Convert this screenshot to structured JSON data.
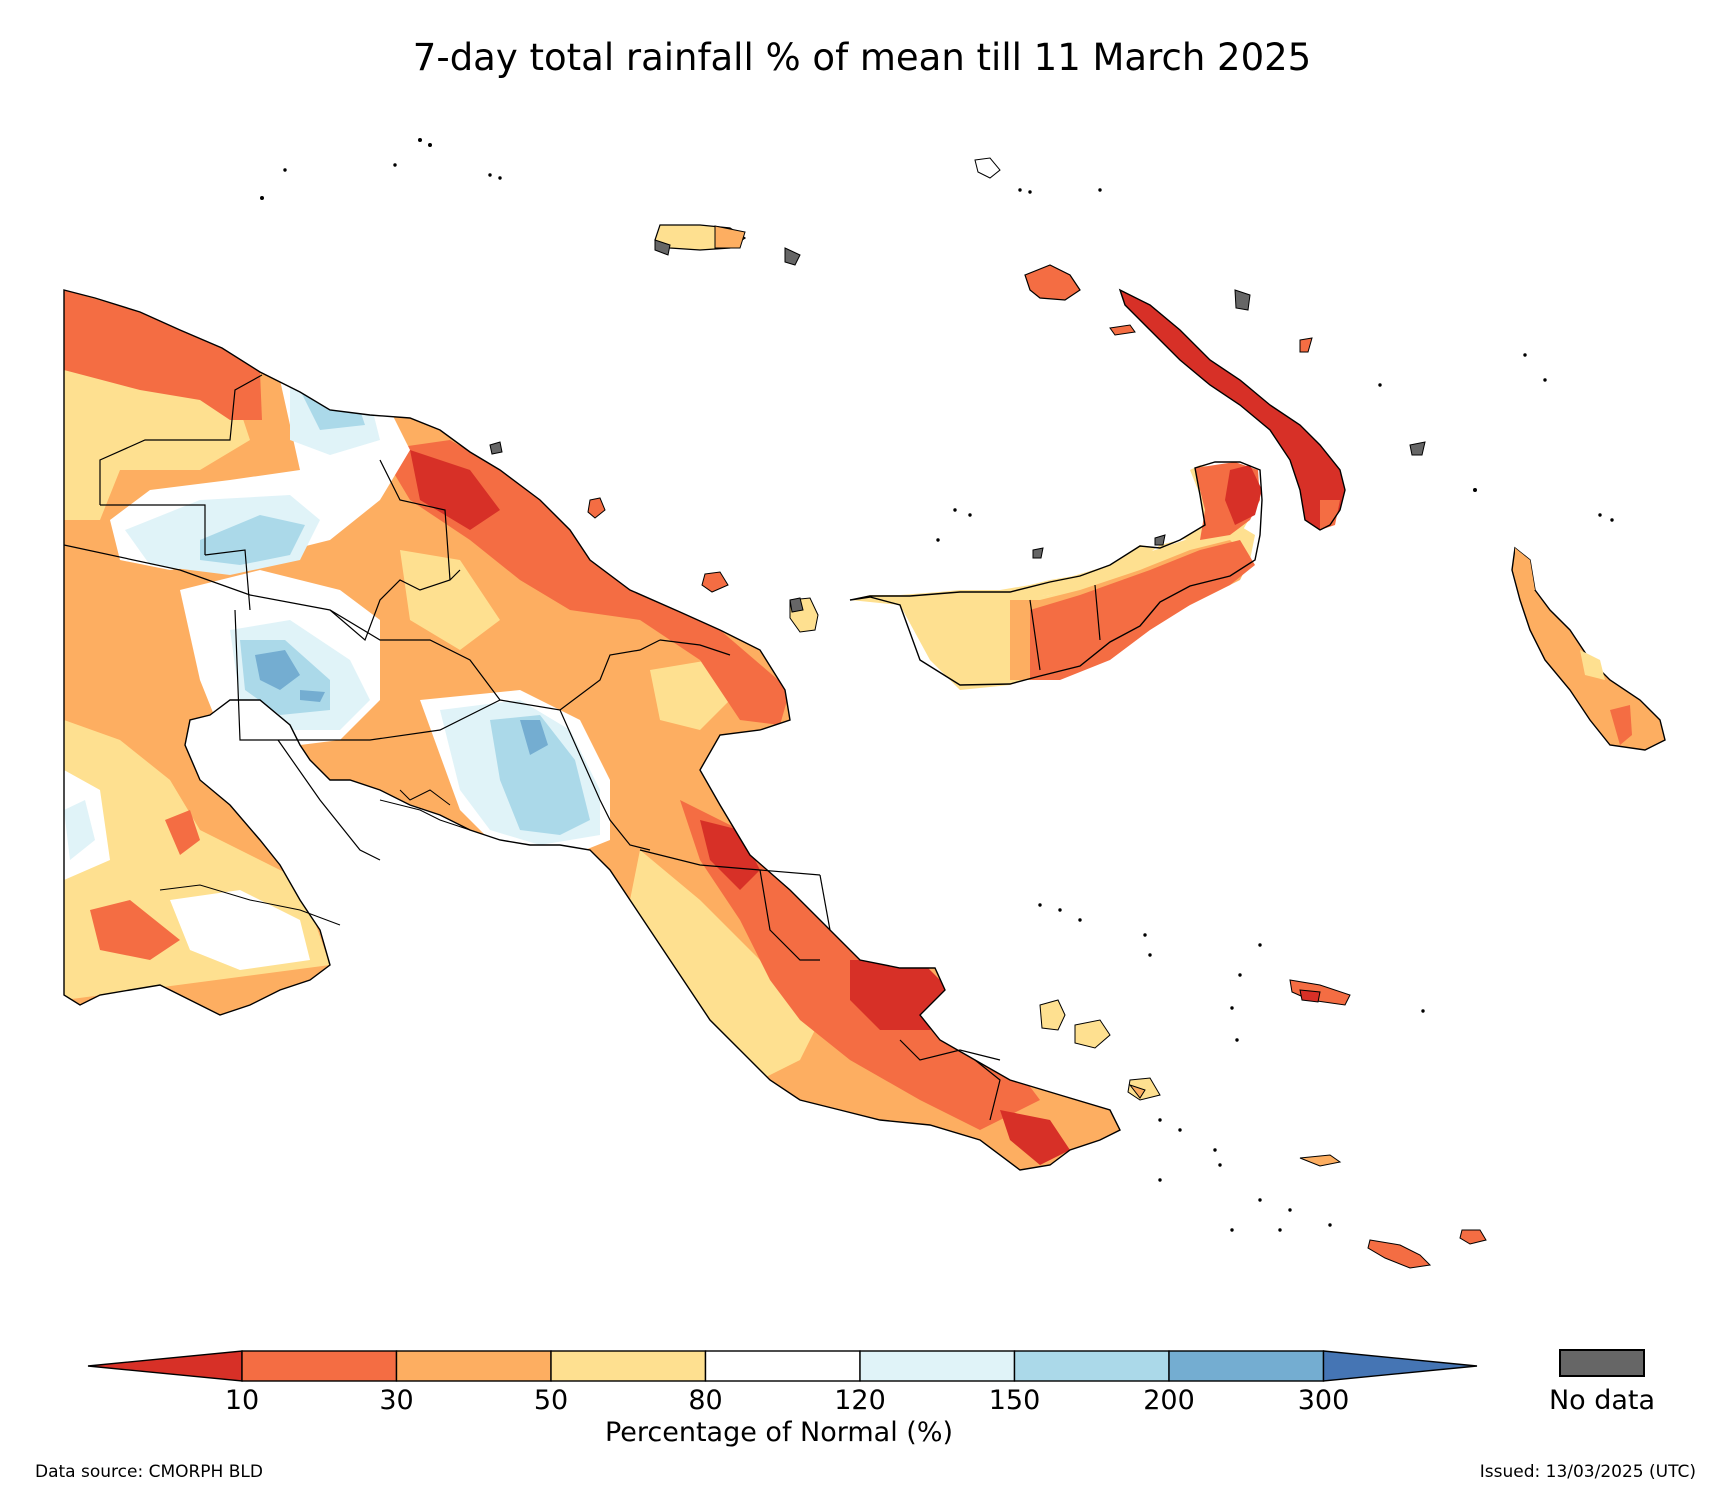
{
  "title": "7-day total rainfall % of mean till 11 March 2025",
  "colorbar": {
    "title": "Percentage of Normal (%)",
    "tick_labels": [
      "10",
      "30",
      "50",
      "80",
      "120",
      "150",
      "200",
      "300"
    ],
    "colors": {
      "below_10": "#d73027",
      "c10_30": "#f46d43",
      "c30_50": "#fdae61",
      "c50_80": "#fee090",
      "c80_120": "#ffffff",
      "c120_150": "#e0f3f8",
      "c150_200": "#abd9e9",
      "c200_300": "#74add1",
      "above_300": "#4575b4"
    }
  },
  "no_data": {
    "label": "No data",
    "color": "#666666"
  },
  "footer": {
    "source": "Data source: CMORPH BLD",
    "issued": "Issued: 13/03/2025 (UTC)"
  }
}
